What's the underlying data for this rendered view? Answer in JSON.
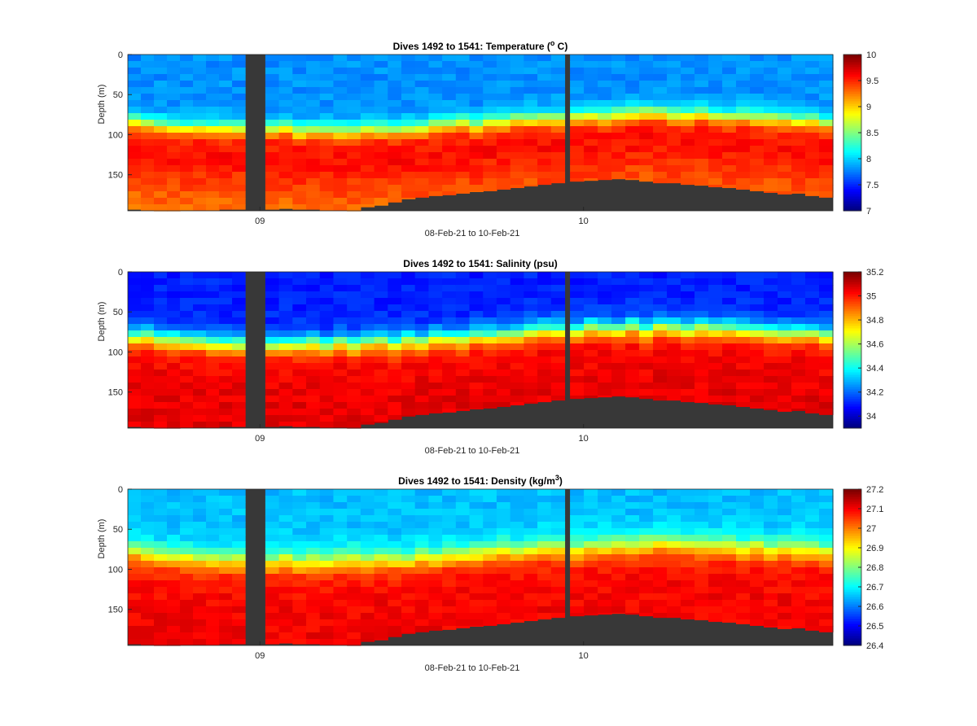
{
  "chart_data": [
    {
      "type": "heatmap",
      "title_text": "Dives 1492 to 1541: Temperature (",
      "title_sup": "o",
      "title_tail": " C)",
      "xlabel": "08-Feb-21 to 10-Feb-21",
      "ylabel": "Depth (m)",
      "xlim_hours": [
        -9.8,
        42.5
      ],
      "ylim": [
        0,
        195
      ],
      "y_reversed": true,
      "yticks": [
        0,
        50,
        100,
        150
      ],
      "xticks": [
        {
          "hours": 0,
          "label": "09"
        },
        {
          "hours": 24,
          "label": "10"
        }
      ],
      "colorbar": {
        "min": 7,
        "max": 10,
        "ticks": [
          7,
          7.5,
          8,
          8.5,
          9,
          9.5,
          10
        ],
        "colormap": "jet"
      },
      "profile": {
        "surface": 7.8,
        "warm_layer": 9.6,
        "deep": 9.0,
        "mixed_layer_depth": 85,
        "transition_thickness": 25
      }
    },
    {
      "type": "heatmap",
      "title_text": "Dives 1492 to 1541: Salinity (psu)",
      "title_sup": "",
      "title_tail": "",
      "xlabel": "08-Feb-21 to 10-Feb-21",
      "ylabel": "Depth (m)",
      "xlim_hours": [
        -9.8,
        42.5
      ],
      "ylim": [
        0,
        195
      ],
      "y_reversed": true,
      "yticks": [
        0,
        50,
        100,
        150
      ],
      "xticks": [
        {
          "hours": 0,
          "label": "09"
        },
        {
          "hours": 24,
          "label": "10"
        }
      ],
      "colorbar": {
        "min": 33.9,
        "max": 35.2,
        "ticks": [
          34,
          34.2,
          34.4,
          34.6,
          34.8,
          35,
          35.2
        ],
        "colormap": "jet"
      },
      "profile": {
        "surface": 34.1,
        "warm_layer": 35.05,
        "deep": 35.1,
        "mixed_layer_depth": 80,
        "transition_thickness": 30
      }
    },
    {
      "type": "heatmap",
      "title_text": "Dives 1492 to 1541: Density (kg/m",
      "title_sup": "3",
      "title_tail": ")",
      "xlabel": "08-Feb-21 to 10-Feb-21",
      "ylabel": "Depth (m)",
      "xlim_hours": [
        -9.8,
        42.5
      ],
      "ylim": [
        0,
        195
      ],
      "y_reversed": true,
      "yticks": [
        0,
        50,
        100,
        150
      ],
      "xticks": [
        {
          "hours": 0,
          "label": "09"
        },
        {
          "hours": 24,
          "label": "10"
        }
      ],
      "colorbar": {
        "min": 26.4,
        "max": 27.2,
        "ticks": [
          26.4,
          26.5,
          26.6,
          26.7,
          26.8,
          26.9,
          27,
          27.1,
          27.2
        ],
        "colormap": "jet"
      },
      "profile": {
        "surface": 26.65,
        "warm_layer": 27.1,
        "deep": 27.12,
        "mixed_layer_depth": 80,
        "transition_thickness": 35
      }
    }
  ],
  "dives": {
    "count": 50,
    "first": 1492,
    "last": 1541,
    "data_gaps_hours": [
      [
        -1.1,
        0.4
      ],
      [
        22.6,
        23.0
      ]
    ],
    "bottom_depth_m": [
      193,
      194,
      195,
      195,
      194,
      194,
      194,
      193,
      193,
      193,
      192,
      193,
      193,
      194,
      194,
      195,
      190,
      188,
      184,
      180,
      178,
      176,
      175,
      173,
      171,
      170,
      168,
      166,
      164,
      162,
      160,
      158,
      157,
      156,
      155,
      156,
      158,
      160,
      160,
      162,
      163,
      165,
      166,
      168,
      170,
      172,
      174,
      173,
      176,
      178
    ]
  },
  "colors": {
    "no_data": "#383838",
    "axis": "#262626"
  }
}
